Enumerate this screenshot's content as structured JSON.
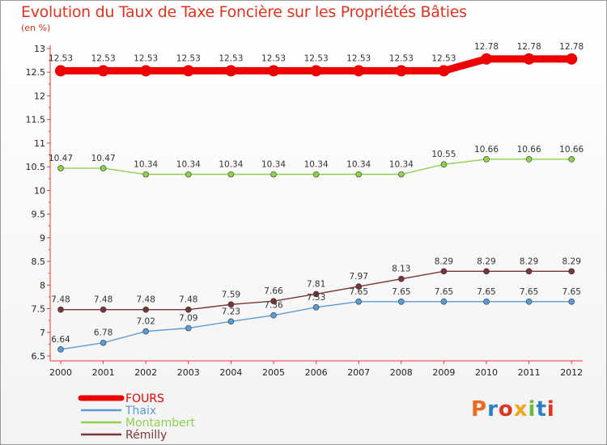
{
  "header": {
    "title": "Evolution du Taux de Taxe Foncière sur les Propriétés Bâties",
    "subtitle": "(en %)"
  },
  "logo": {
    "text": "Proxiti",
    "colors": [
      "#e86b1f",
      "#2d7fc7",
      "#e0341f",
      "#f2a51c",
      "#6cba3a",
      "#2d7fc7",
      "#e0341f"
    ]
  },
  "chart_data": {
    "type": "line",
    "x": [
      "2000",
      "2001",
      "2002",
      "2003",
      "2004",
      "2005",
      "2006",
      "2007",
      "2008",
      "2009",
      "2010",
      "2011",
      "2012"
    ],
    "ylim": [
      6.5,
      13
    ],
    "yticks": [
      "6.5",
      "7",
      "7.5",
      "8",
      "8.5",
      "9",
      "9.5",
      "10",
      "10.5",
      "11",
      "11.5",
      "12",
      "12.5",
      "13"
    ],
    "grid": false,
    "legend": "bottom-left",
    "series": [
      {
        "name": "FOURS",
        "color": "#ee0000",
        "bold": true,
        "values": [
          12.53,
          12.53,
          12.53,
          12.53,
          12.53,
          12.53,
          12.53,
          12.53,
          12.53,
          12.53,
          12.78,
          12.78,
          12.78
        ],
        "labels": [
          "12.53",
          "12.53",
          "12.53",
          "12.53",
          "12.53",
          "12.53",
          "12.53",
          "12.53",
          "12.53",
          "12.53",
          "12.78",
          "12.78",
          "12.78"
        ]
      },
      {
        "name": "Thaix",
        "color": "#5b9bd5",
        "values": [
          6.64,
          6.78,
          7.02,
          7.09,
          7.23,
          7.36,
          7.53,
          7.65,
          7.65,
          7.65,
          7.65,
          7.65,
          7.65
        ],
        "labels": [
          "6.64",
          "6.78",
          "7.02",
          "7.09",
          "7.23",
          "7.36",
          "7.53",
          "7.65",
          "7.65",
          "7.65",
          "7.65",
          "7.65",
          "7.65"
        ]
      },
      {
        "name": "Montambert",
        "color": "#8fd14f",
        "values": [
          10.47,
          10.47,
          10.34,
          10.34,
          10.34,
          10.34,
          10.34,
          10.34,
          10.34,
          10.55,
          10.66,
          10.66,
          10.66
        ],
        "labels": [
          "10.47",
          "10.47",
          "10.34",
          "10.34",
          "10.34",
          "10.34",
          "10.34",
          "10.34",
          "10.34",
          "10.55",
          "10.66",
          "10.66",
          "10.66"
        ]
      },
      {
        "name": "Rémilly",
        "color": "#7a3535",
        "values": [
          7.48,
          7.48,
          7.48,
          7.48,
          7.59,
          7.66,
          7.81,
          7.97,
          8.13,
          8.29,
          8.29,
          8.29,
          8.29
        ],
        "labels": [
          "7.48",
          "7.48",
          "7.48",
          "7.48",
          "7.59",
          "7.66",
          "7.81",
          "7.97",
          "8.13",
          "8.29",
          "8.29",
          "8.29",
          "8.29"
        ]
      }
    ]
  }
}
